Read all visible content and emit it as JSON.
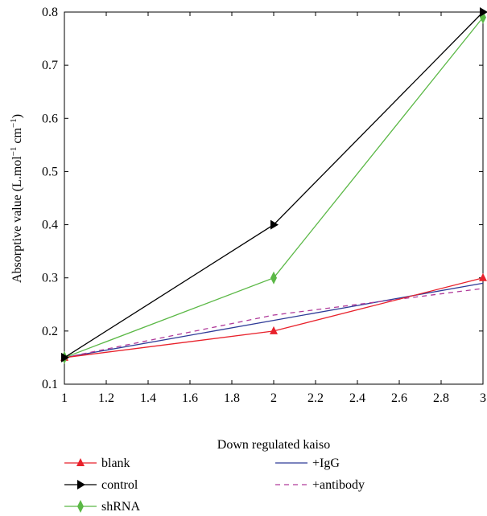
{
  "chart_data": {
    "type": "line",
    "xlabel": "Down regulated kaiso",
    "ylabel_main": "Absorptive value (L.mol",
    "ylabel_sup1": "−1",
    "ylabel_mid": " cm",
    "ylabel_sup2": "−1",
    "ylabel_end": ")",
    "xlim": [
      1,
      3
    ],
    "ylim": [
      0.1,
      0.8
    ],
    "x_ticks": [
      1,
      1.2,
      1.4,
      1.6,
      1.8,
      2,
      2.2,
      2.4,
      2.6,
      2.8,
      3
    ],
    "x_tick_labels": [
      "1",
      "1.2",
      "1.4",
      "1.6",
      "1.8",
      "2",
      "2.2",
      "2.4",
      "2.6",
      "2.8",
      "3"
    ],
    "y_ticks": [
      0.1,
      0.2,
      0.3,
      0.4,
      0.5,
      0.6,
      0.7,
      0.8
    ],
    "y_tick_labels": [
      "0.1",
      "0.2",
      "0.3",
      "0.4",
      "0.5",
      "0.6",
      "0.7",
      "0.8"
    ],
    "grid": false,
    "legend_position": "bottom",
    "series": [
      {
        "name": "blank",
        "key": "blank",
        "color": "#e8212b",
        "dash": "",
        "marker": "triangle-up",
        "x": [
          1,
          2,
          3
        ],
        "y": [
          0.15,
          0.2,
          0.3
        ]
      },
      {
        "name": "control",
        "key": "control",
        "color": "#000000",
        "dash": "",
        "marker": "triangle-right",
        "x": [
          1,
          2,
          3
        ],
        "y": [
          0.15,
          0.4,
          0.8
        ]
      },
      {
        "name": "shRNA",
        "key": "shrna",
        "color": "#5bb846",
        "dash": "",
        "marker": "diamond-thin",
        "x": [
          1,
          2,
          3
        ],
        "y": [
          0.15,
          0.3,
          0.79
        ]
      },
      {
        "name": "+IgG",
        "key": "igg",
        "color": "#2e3a97",
        "dash": "",
        "marker": "none",
        "x": [
          1,
          2,
          3
        ],
        "y": [
          0.15,
          0.22,
          0.29
        ]
      },
      {
        "name": "+antibody",
        "key": "antibody",
        "color": "#b03a9a",
        "dash": "6,5",
        "marker": "none",
        "x": [
          1,
          2,
          3
        ],
        "y": [
          0.15,
          0.23,
          0.28
        ]
      }
    ]
  }
}
